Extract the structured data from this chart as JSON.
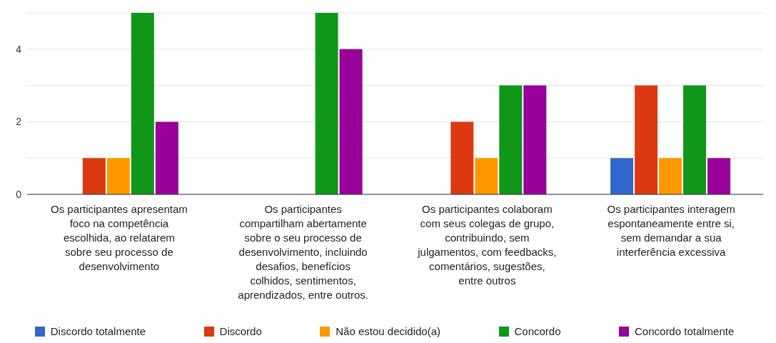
{
  "chart_data": {
    "type": "bar",
    "categories": [
      "Os participantes apresentam foco na competência escolhida, ao relatarem sobre seu processo de desenvolvimento",
      "Os participantes compartilham abertamente sobre o seu processo de desenvolvimento, incluindo desafios, benefícios colhidos, sentimentos, aprendizados, entre outros.",
      "Os participantes colaboram com seus colegas de grupo, contribuindo, sem julgamentos, com feedbacks, comentários, sugestões, entre outros",
      "Os participantes interagem espontaneamente entre si, sem demandar a sua interferência excessiva"
    ],
    "series": [
      {
        "name": "Discordo totalmente",
        "color": "#3366cc",
        "values": [
          0,
          0,
          0,
          1
        ]
      },
      {
        "name": "Discordo",
        "color": "#dc3912",
        "values": [
          1,
          0,
          2,
          3
        ]
      },
      {
        "name": "Não estou decidido(a)",
        "color": "#ff9900",
        "values": [
          1,
          0,
          1,
          1
        ]
      },
      {
        "name": "Concordo",
        "color": "#109618",
        "values": [
          5,
          5,
          3,
          3
        ]
      },
      {
        "name": "Concordo totalmente",
        "color": "#990099",
        "values": [
          2,
          4,
          3,
          1
        ]
      }
    ],
    "ylim": [
      0,
      5
    ],
    "yticks": [
      0,
      {
        "value": 1,
        "label": null
      },
      2,
      {
        "value": 3,
        "label": null
      },
      4,
      {
        "value": 5,
        "label": null
      }
    ],
    "grid": "y",
    "legend": "bottom"
  }
}
